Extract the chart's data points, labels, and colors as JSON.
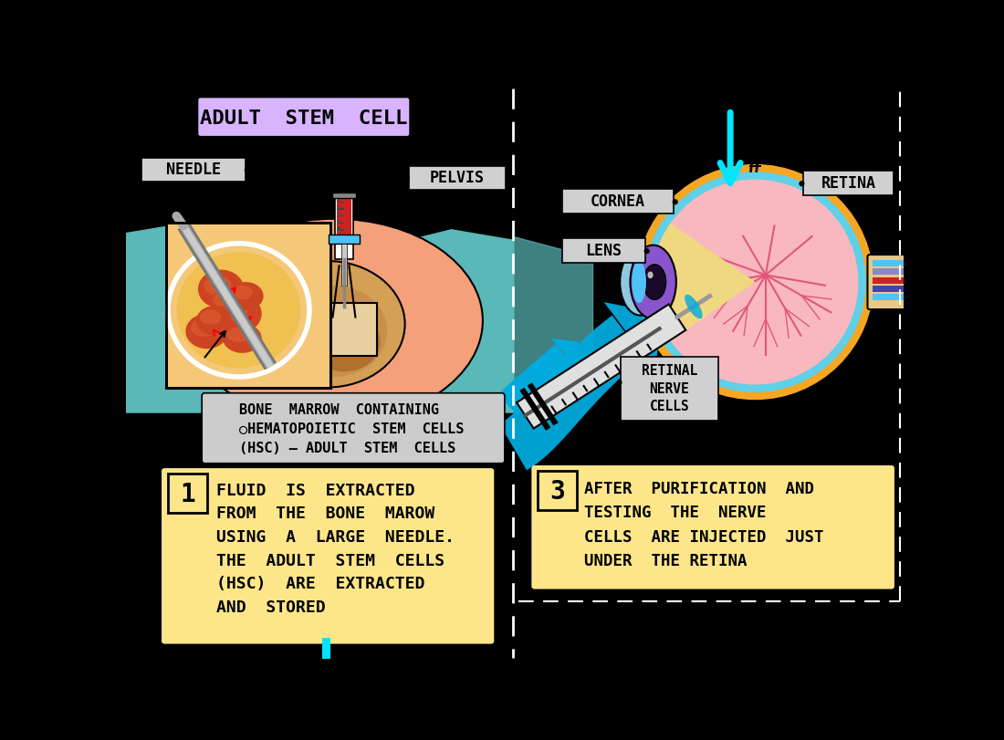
{
  "bg_color": "#000000",
  "title_text": "ADULT  STEM  CELL",
  "title_bg": "#d8b4fe",
  "needle_label": "NEEDLE",
  "pelvis_label": "○PELVIS",
  "cornea_label": "CORNEA○",
  "lens_label": "LENS ○",
  "retina_label": "○RETINA",
  "retinal_nerve_label": "RETINAL\n○NERVE\nCELLS",
  "bone_marrow_label": "BONE  MARROW  CONTAINING\n○HEMATOPOIETIC  STEM  CELLS\n(HSC) – ADULT  STEM  CELLS",
  "step1_num": "1",
  "step1_text": "FLUID  IS  EXTRACTED\nFROM  THE  BONE  MAROW\nUSING  A  LARGE  NEEDLE.\nTHE  ADULT  STEM  CELLS\n(HSC)  ARE  EXTRACTED\nAND  STORED",
  "step3_num": "3",
  "step3_text": "AFTER  PURIFICATION  AND\nTESTING  THE  NERVE\nCELLS  ARE INJECTED  JUST\nUNDER  THE RETINA",
  "cyan_color": "#00e5ff",
  "teal_body_color": "#5ab8b8",
  "label_bg": "#d0d0d0",
  "step_bg": "#fde68a",
  "skin_color": "#f4a07a",
  "pelvis_tan": "#d4a055",
  "marrow_orange": "#cc4422",
  "marrow_yellow": "#f0c060",
  "eye_orange": "#f5a623",
  "eye_cyan_ring": "#4fc3f7",
  "eye_pink": "#f48fb1",
  "eye_purple": "#8b6fd0",
  "eye_cornea_blue": "#7eb8d0",
  "needle_gray": "#aaaaaa",
  "needle_dark": "#777777",
  "syringe_red": "#cc2222",
  "syringe_blue_handle": "#4fc3f7",
  "optic_stripe1": "#4fc3f7",
  "optic_stripe2": "#8888cc",
  "optic_stripe3": "#cc2222",
  "optic_stripe4": "#4444aa",
  "optic_bg": "#e8c888"
}
